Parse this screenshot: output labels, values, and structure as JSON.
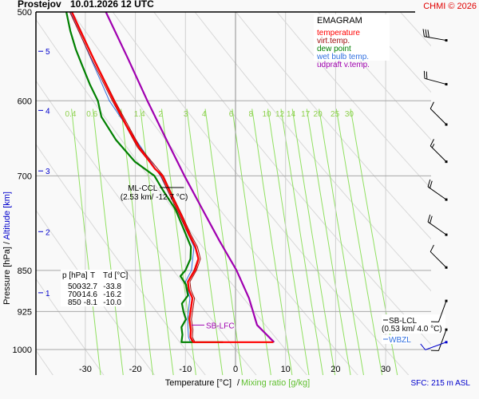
{
  "header": {
    "station": "Prostejov",
    "datetime": "10.01.2026 12 UTC",
    "copyright": "CHMI © 2026"
  },
  "legend": {
    "title": "EMAGRAM",
    "items": [
      {
        "label": "temperature",
        "color": "#ff0000"
      },
      {
        "label": "virt.temp.",
        "color": "#a01010"
      },
      {
        "label": "dew point",
        "color": "#008000"
      },
      {
        "label": "wet bulb temp.",
        "color": "#3070e0"
      },
      {
        "label": "udpraft v.temp.",
        "color": "#a000b0"
      }
    ]
  },
  "table": {
    "headers": [
      "p [hPa]",
      "T",
      "Td [°C]"
    ],
    "rows": [
      [
        "500",
        "-32.7",
        "-33.8"
      ],
      [
        "700",
        "-14.6",
        "-16.2"
      ],
      [
        "850",
        "-8.1",
        "-10.0"
      ]
    ]
  },
  "annotations": {
    "ml_ccl": {
      "label": "ML-CCL",
      "detail": "(2.53 km/ -12.7 °C)",
      "p": 730,
      "t": -12.7
    },
    "sb_lfc": {
      "label": "SB-LFC",
      "p": 951
    },
    "sb_lcl": {
      "label": "SB-LCL",
      "detail": "(0.53 km/ 4.0 °C)",
      "p": 951
    },
    "wbzl": {
      "label": "WBZL",
      "p": 974
    }
  },
  "footer": {
    "sfc": "SFC: 215 m ASL"
  },
  "colors": {
    "temperature": "#ff0000",
    "virt_temp": "#a01010",
    "dew_point": "#008000",
    "wet_bulb": "#3070e0",
    "updraft": "#a000b0",
    "mixing_ratio": "#90e060",
    "altitude": "#0000cc"
  },
  "chart_data": {
    "type": "line",
    "title": "Prostejov 10.01.2026 12 UTC",
    "diagram": "emagram",
    "xlabel": "Temperature [°C]",
    "xlabel2": "Mixing ratio [g/kg]",
    "ylabel": "Pressure [hPa]",
    "ylabel2": "Altitude [km]",
    "xlim": [
      -38,
      38
    ],
    "ylim": [
      1060,
      500
    ],
    "x_ticks": [
      -30,
      -20,
      -10,
      0,
      10,
      20,
      30
    ],
    "pressure_ticks": [
      500,
      600,
      700,
      850,
      925,
      1000
    ],
    "altitude_ticks": [
      {
        "km": 5,
        "p": 542
      },
      {
        "km": 4,
        "p": 612
      },
      {
        "km": 3,
        "p": 693
      },
      {
        "km": 2,
        "p": 785
      },
      {
        "km": 1,
        "p": 890
      }
    ],
    "mixing_ratio_lines": [
      0.4,
      0.6,
      1,
      1.4,
      2,
      3,
      4,
      6,
      8,
      10,
      12,
      14,
      17,
      20,
      25,
      30
    ],
    "series": [
      {
        "name": "temperature",
        "points": [
          [
            500,
            -32.7
          ],
          [
            520,
            -31.0
          ],
          [
            550,
            -28.4
          ],
          [
            580,
            -25.9
          ],
          [
            600,
            -24.3
          ],
          [
            630,
            -21.9
          ],
          [
            660,
            -19.3
          ],
          [
            690,
            -16.1
          ],
          [
            700,
            -14.6
          ],
          [
            730,
            -12.7
          ],
          [
            760,
            -10.8
          ],
          [
            790,
            -9.2
          ],
          [
            810,
            -8.0
          ],
          [
            830,
            -7.4
          ],
          [
            850,
            -8.1
          ],
          [
            870,
            -9.5
          ],
          [
            885,
            -9.3
          ],
          [
            900,
            -8.6
          ],
          [
            920,
            -8.9
          ],
          [
            940,
            -9.2
          ],
          [
            960,
            -8.9
          ],
          [
            975,
            -9.0
          ],
          [
            985,
            -8.4
          ],
          [
            985,
            7.5
          ]
        ]
      },
      {
        "name": "virt.temp.",
        "points": [
          [
            500,
            -32.6
          ],
          [
            550,
            -28.3
          ],
          [
            600,
            -24.1
          ],
          [
            660,
            -19.1
          ],
          [
            700,
            -14.4
          ],
          [
            730,
            -12.5
          ],
          [
            760,
            -10.6
          ],
          [
            790,
            -8.9
          ],
          [
            810,
            -7.6
          ],
          [
            830,
            -7.0
          ],
          [
            850,
            -7.8
          ],
          [
            870,
            -9.1
          ],
          [
            885,
            -8.9
          ],
          [
            900,
            -8.2
          ],
          [
            920,
            -8.5
          ],
          [
            940,
            -8.8
          ],
          [
            960,
            -8.5
          ],
          [
            975,
            -8.6
          ],
          [
            985,
            -8.1
          ],
          [
            985,
            7.7
          ]
        ]
      },
      {
        "name": "dew point",
        "points": [
          [
            500,
            -33.8
          ],
          [
            520,
            -33.0
          ],
          [
            540,
            -31.9
          ],
          [
            560,
            -30.5
          ],
          [
            580,
            -29.1
          ],
          [
            600,
            -27.5
          ],
          [
            620,
            -26.8
          ],
          [
            650,
            -23.9
          ],
          [
            680,
            -20.1
          ],
          [
            700,
            -16.2
          ],
          [
            720,
            -14.6
          ],
          [
            750,
            -12.0
          ],
          [
            780,
            -10.4
          ],
          [
            810,
            -8.9
          ],
          [
            830,
            -9.0
          ],
          [
            850,
            -10.0
          ],
          [
            860,
            -11.0
          ],
          [
            875,
            -9.9
          ],
          [
            895,
            -9.5
          ],
          [
            910,
            -10.7
          ],
          [
            925,
            -10.4
          ],
          [
            940,
            -9.9
          ],
          [
            955,
            -10.8
          ],
          [
            970,
            -10.6
          ],
          [
            985,
            -10.8
          ],
          [
            985,
            -2.5
          ]
        ]
      },
      {
        "name": "wet bulb temp.",
        "points": [
          [
            500,
            -33.0
          ],
          [
            600,
            -25.2
          ],
          [
            700,
            -15.0
          ],
          [
            760,
            -11.1
          ],
          [
            810,
            -8.3
          ],
          [
            850,
            -8.8
          ],
          [
            870,
            -10.0
          ],
          [
            900,
            -9.1
          ],
          [
            940,
            -9.6
          ],
          [
            975,
            -9.4
          ],
          [
            985,
            -9.0
          ],
          [
            985,
            0.5
          ]
        ]
      },
      {
        "name": "udpraft v.temp.",
        "points": [
          [
            500,
            -25.9
          ],
          [
            550,
            -21.5
          ],
          [
            600,
            -17.6
          ],
          [
            650,
            -13.8
          ],
          [
            700,
            -10.2
          ],
          [
            750,
            -6.6
          ],
          [
            800,
            -3.2
          ],
          [
            850,
            0.2
          ],
          [
            900,
            2.7
          ],
          [
            951,
            4.3
          ],
          [
            985,
            7.7
          ]
        ]
      }
    ],
    "wind_barbs": [
      {
        "p": 530,
        "dir": 280,
        "speed_kt": 30
      },
      {
        "p": 580,
        "dir": 285,
        "speed_kt": 20
      },
      {
        "p": 630,
        "dir": 315,
        "speed_kt": 10
      },
      {
        "p": 680,
        "dir": 315,
        "speed_kt": 15
      },
      {
        "p": 735,
        "dir": 305,
        "speed_kt": 20
      },
      {
        "p": 790,
        "dir": 305,
        "speed_kt": 20
      },
      {
        "p": 845,
        "dir": 315,
        "speed_kt": 10
      },
      {
        "p": 905,
        "dir": 200,
        "speed_kt": 10
      },
      {
        "p": 960,
        "dir": 200,
        "speed_kt": 10
      },
      {
        "p": 985,
        "dir": 250,
        "speed_kt": 10
      }
    ]
  }
}
